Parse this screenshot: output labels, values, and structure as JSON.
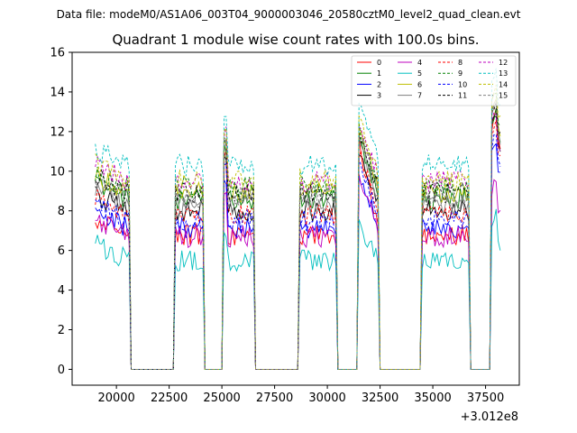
{
  "chart_data": {
    "type": "line",
    "suptitle": "Data file: modeM0/AS1A06_003T04_9000003046_20580cztM0_level2_quad_clean.evt",
    "title": "Quadrant 1 module wise count rates with 100.0s bins.",
    "xlabel": "",
    "ylabel": "",
    "x_offset_label": "+3.012e8",
    "xlim": [
      17900,
      39100
    ],
    "ylim": [
      -0.8,
      16
    ],
    "x_ticks": [
      20000,
      22500,
      25000,
      27500,
      30000,
      32500,
      35000,
      37500
    ],
    "x_tick_labels": [
      "20000",
      "22500",
      "25000",
      "27500",
      "30000",
      "32500",
      "35000",
      "37500"
    ],
    "y_ticks": [
      0,
      2,
      4,
      6,
      8,
      10,
      12,
      14,
      16
    ],
    "y_tick_labels": [
      "0",
      "2",
      "4",
      "6",
      "8",
      "10",
      "12",
      "14",
      "16"
    ],
    "legend_position": "upper-right",
    "legend_columns": 4,
    "bin_seconds": 100,
    "segments": [
      {
        "start": 19000,
        "end": 20600
      },
      {
        "start": 22800,
        "end": 24100
      },
      {
        "start": 25100,
        "end": 26500
      },
      {
        "start": 28700,
        "end": 30400
      },
      {
        "start": 31500,
        "end": 32400
      },
      {
        "start": 34500,
        "end": 36700
      },
      {
        "start": 37800,
        "end": 38200
      }
    ],
    "series": [
      {
        "name": "0",
        "color": "#ff0000",
        "dash": "solid",
        "level": 6.8,
        "spike": 11.4,
        "end_level": 12.3
      },
      {
        "name": "1",
        "color": "#008000",
        "dash": "solid",
        "level": 8.6,
        "spike": 11.6,
        "end_level": 12.6
      },
      {
        "name": "2",
        "color": "#0000ff",
        "dash": "solid",
        "level": 7.1,
        "spike": 10.0,
        "end_level": 11.0
      },
      {
        "name": "3",
        "color": "#000000",
        "dash": "solid",
        "level": 8.0,
        "spike": 11.2,
        "end_level": 12.2
      },
      {
        "name": "4",
        "color": "#bf00bf",
        "dash": "solid",
        "level": 6.7,
        "spike": 9.6,
        "end_level": 9.0
      },
      {
        "name": "5",
        "color": "#00bfbf",
        "dash": "solid",
        "level": 5.5,
        "spike": 7.2,
        "end_level": 7.2
      },
      {
        "name": "6",
        "color": "#bfbf00",
        "dash": "solid",
        "level": 8.9,
        "spike": 12.1,
        "end_level": 13.2
      },
      {
        "name": "7",
        "color": "#808080",
        "dash": "solid",
        "level": 8.3,
        "spike": 11.8,
        "end_level": 12.7
      },
      {
        "name": "8",
        "color": "#ff0000",
        "dash": "dashed",
        "level": 7.8,
        "spike": 11.0,
        "end_level": 12.0
      },
      {
        "name": "9",
        "color": "#008000",
        "dash": "dashed",
        "level": 9.2,
        "spike": 12.2,
        "end_level": 13.5
      },
      {
        "name": "10",
        "color": "#0000ff",
        "dash": "dashed",
        "level": 7.5,
        "spike": 10.6,
        "end_level": 11.3
      },
      {
        "name": "11",
        "color": "#000000",
        "dash": "dashed",
        "level": 8.9,
        "spike": 12.0,
        "end_level": 12.9
      },
      {
        "name": "12",
        "color": "#bf00bf",
        "dash": "dashed",
        "level": 9.5,
        "spike": 12.5,
        "end_level": 12.4
      },
      {
        "name": "13",
        "color": "#00bfbf",
        "dash": "dashed",
        "level": 10.3,
        "spike": 13.5,
        "end_level": 14.3
      },
      {
        "name": "14",
        "color": "#bfbf00",
        "dash": "dashed",
        "level": 9.6,
        "spike": 12.6,
        "end_level": 13.8
      },
      {
        "name": "15",
        "color": "#808080",
        "dash": "dashed",
        "level": 8.7,
        "spike": 12.0,
        "end_level": 13.0
      }
    ]
  }
}
